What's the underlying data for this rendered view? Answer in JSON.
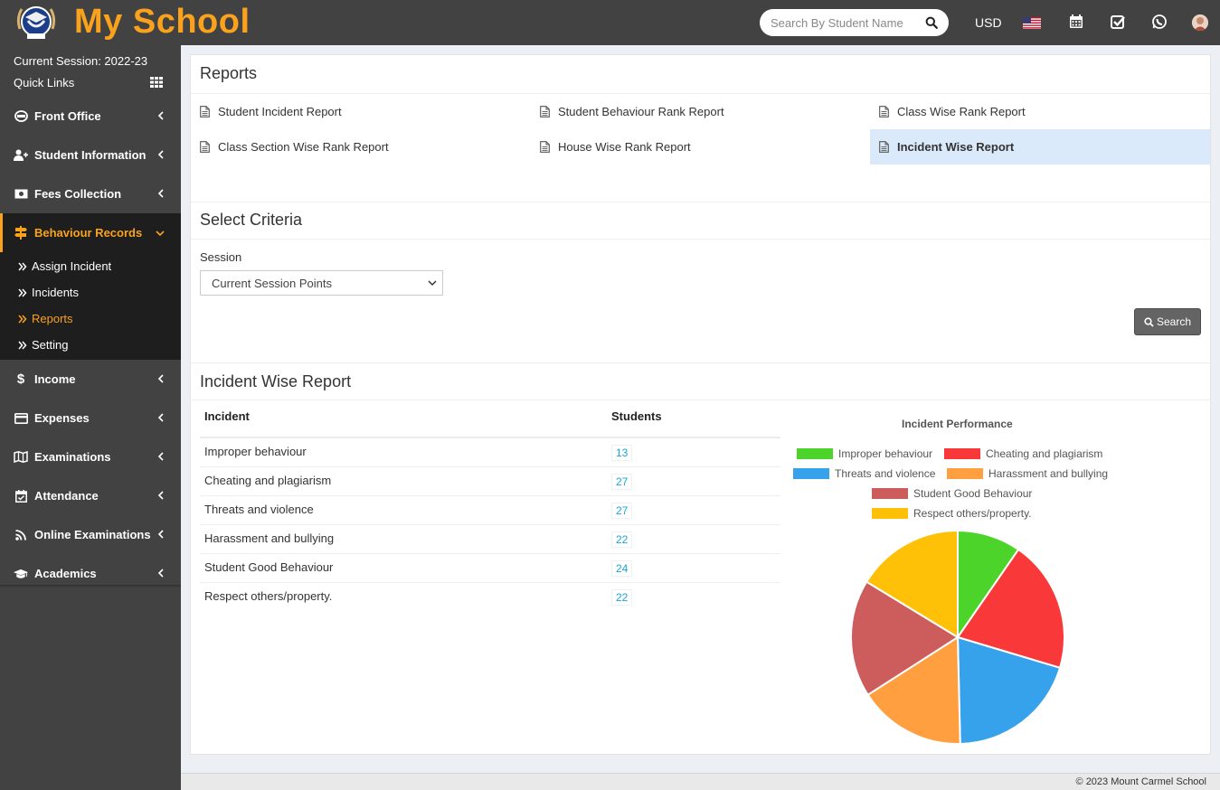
{
  "header": {
    "app_name": "My School",
    "search_placeholder": "Search By Student Name",
    "currency": "USD"
  },
  "sidebar": {
    "session": "Current Session: 2022-23",
    "quick_links": "Quick Links",
    "items": [
      {
        "label": "Front Office",
        "icon": "building-icon"
      },
      {
        "label": "Student Information",
        "icon": "user-plus-icon"
      },
      {
        "label": "Fees Collection",
        "icon": "money-icon"
      },
      {
        "label": "Behaviour Records",
        "icon": "signpost-icon"
      },
      {
        "label": "Income",
        "icon": "dollar-icon"
      },
      {
        "label": "Expenses",
        "icon": "credit-card-icon"
      },
      {
        "label": "Examinations",
        "icon": "map-icon"
      },
      {
        "label": "Attendance",
        "icon": "calendar-check-icon"
      },
      {
        "label": "Online Examinations",
        "icon": "rss-icon"
      },
      {
        "label": "Academics",
        "icon": "graduation-cap-icon"
      }
    ],
    "behaviour_sub": [
      "Assign Incident",
      "Incidents",
      "Reports",
      "Setting"
    ]
  },
  "reports": {
    "title": "Reports",
    "links": [
      "Student Incident Report",
      "Student Behaviour Rank Report",
      "Class Wise Rank Report",
      "Class Section Wise Rank Report",
      "House Wise Rank Report",
      "Incident Wise Report"
    ]
  },
  "criteria": {
    "title": "Select Criteria",
    "session_label": "Session",
    "session_value": "Current Session Points",
    "search_button": "Search"
  },
  "report": {
    "title": "Incident Wise Report",
    "col_incident": "Incident",
    "col_students": "Students",
    "rows": [
      {
        "incident": "Improper behaviour",
        "students": "13"
      },
      {
        "incident": "Cheating and plagiarism",
        "students": "27"
      },
      {
        "incident": "Threats and violence",
        "students": "27"
      },
      {
        "incident": "Harassment and bullying",
        "students": "22"
      },
      {
        "incident": "Student Good Behaviour",
        "students": "24"
      },
      {
        "incident": "Respect others/property.",
        "students": "22"
      }
    ]
  },
  "chart_data": {
    "type": "pie",
    "title": "Incident Performance",
    "categories": [
      "Improper behaviour",
      "Cheating and plagiarism",
      "Threats and violence",
      "Harassment and bullying",
      "Student Good Behaviour",
      "Respect others/property."
    ],
    "values": [
      13,
      27,
      27,
      22,
      24,
      22
    ],
    "colors": [
      "#4cd42a",
      "#f93939",
      "#36a2eb",
      "#ff9f40",
      "#cd5c5c",
      "#ffc107"
    ],
    "legend": "top"
  },
  "footer": {
    "copyright": "© 2023 Mount Carmel School"
  }
}
